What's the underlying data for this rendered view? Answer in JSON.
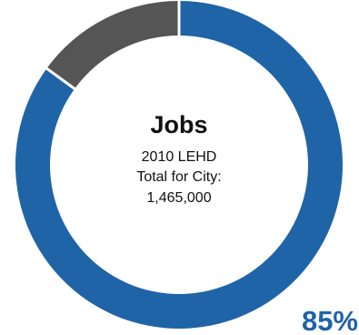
{
  "chart_data": {
    "type": "pie",
    "title": "Jobs",
    "subtitle_lines": [
      "2010 LEHD",
      "Total for City:",
      "1,465,000"
    ],
    "slices": [
      {
        "value": 85,
        "color": "#1f64a6"
      },
      {
        "value": 15,
        "color": "#555555"
      }
    ],
    "data_labels": [
      {
        "text": "85%",
        "color": "#1f64a6"
      }
    ],
    "colors": {
      "divider": "#ffffff"
    }
  }
}
